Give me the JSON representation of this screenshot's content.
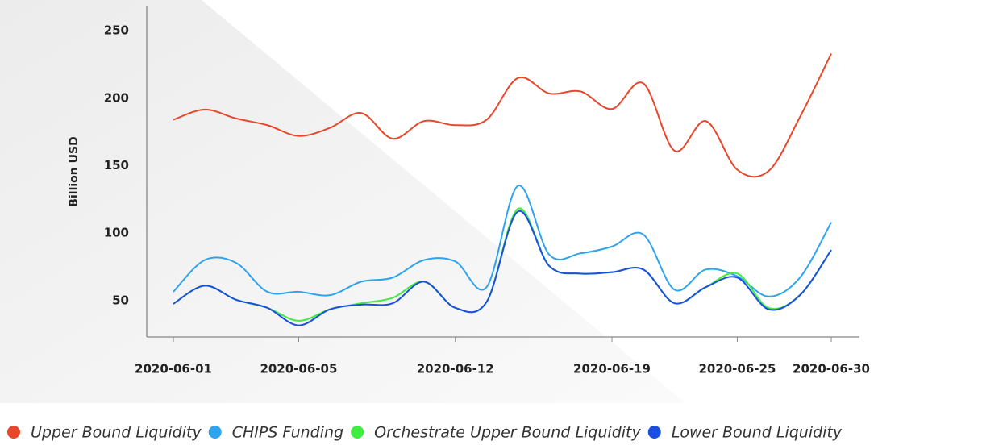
{
  "chart_data": {
    "type": "line",
    "y_label": "Billion USD",
    "categories": [
      "2020-06-01",
      null,
      null,
      null,
      "2020-06-05",
      null,
      null,
      null,
      null,
      "2020-06-12",
      null,
      null,
      null,
      null,
      "2020-06-19",
      null,
      null,
      null,
      "2020-06-25",
      null,
      null,
      "2020-06-30"
    ],
    "series": [
      {
        "name": "Upper Bound Liquidity",
        "color": "#e8472b",
        "values": [
          184,
          191.6,
          185,
          180,
          172,
          178,
          189,
          170,
          183,
          180,
          184,
          215,
          203.5,
          205,
          192,
          211,
          161,
          183,
          147,
          146,
          186,
          233
        ]
      },
      {
        "name": "CHIPS Funding",
        "color": "#2ea3ee",
        "values": [
          56.5,
          80,
          78,
          56.5,
          56.5,
          54,
          64,
          67,
          80,
          79,
          60,
          135,
          84,
          85,
          90,
          99,
          58,
          73,
          68,
          53,
          67,
          108
        ]
      },
      {
        "name": "Orchestrate Upper Bound Liquidity",
        "color": "#3fec3f",
        "values": [
          47.6,
          61,
          50.6,
          44.6,
          35,
          43.5,
          48,
          52,
          64,
          44.6,
          49,
          118,
          75.6,
          70,
          71,
          73,
          48,
          60,
          70,
          44.6,
          54,
          87.5
        ]
      },
      {
        "name": "Lower Bound Liquidity",
        "color": "#1a4fe0",
        "values": [
          47.6,
          61,
          50.6,
          44.6,
          31.6,
          43.5,
          47,
          48,
          64,
          44.6,
          49,
          116,
          75.6,
          70,
          71,
          73,
          48,
          60,
          67,
          43.5,
          54,
          87.5
        ]
      }
    ],
    "ylim": [
      23,
      268
    ],
    "yticks": [
      50,
      100,
      150,
      200,
      250
    ],
    "legend": "bottom"
  }
}
